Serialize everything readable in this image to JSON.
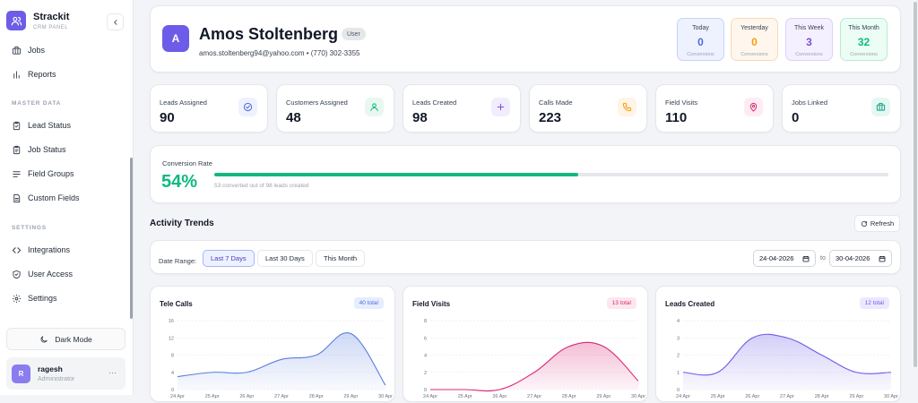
{
  "brand": {
    "name": "Strackit",
    "subtitle": "CRM PANEL"
  },
  "sidebar": {
    "items_top": [
      {
        "label": "Jobs",
        "icon": "briefcase-icon"
      },
      {
        "label": "Reports",
        "icon": "bar-chart-icon"
      }
    ],
    "master_data_heading": "MASTER DATA",
    "master_items": [
      {
        "label": "Lead Status",
        "icon": "clipboard-check-icon"
      },
      {
        "label": "Job Status",
        "icon": "clipboard-icon"
      },
      {
        "label": "Field Groups",
        "icon": "list-icon"
      },
      {
        "label": "Custom Fields",
        "icon": "document-icon"
      }
    ],
    "settings_heading": "SETTINGS",
    "settings_items": [
      {
        "label": "Integrations",
        "icon": "code-icon"
      },
      {
        "label": "User Access",
        "icon": "shield-icon"
      },
      {
        "label": "Settings",
        "icon": "gear-icon"
      }
    ],
    "dark_mode_label": "Dark Mode",
    "user": {
      "initial": "R",
      "name": "ragesh",
      "role": "Administrator"
    }
  },
  "profile": {
    "initial": "A",
    "name": "Amos Stoltenberg",
    "role_badge": "User",
    "contact": "amos.stoltenberg94@yahoo.com • (770) 302-3355",
    "conversions": [
      {
        "label": "Today",
        "value": "0",
        "sub": "Conversions",
        "bg": "#eef2ff",
        "border": "#c7d2fe",
        "color": "#4f6bd8"
      },
      {
        "label": "Yesterday",
        "value": "0",
        "sub": "Conversions",
        "bg": "#fff7ed",
        "border": "#fcd9b0",
        "color": "#f59e0b"
      },
      {
        "label": "This Week",
        "value": "3",
        "sub": "Conversions",
        "bg": "#f5f0ff",
        "border": "#ddd0fb",
        "color": "#7c4ddb"
      },
      {
        "label": "This Month",
        "value": "32",
        "sub": "Conversions",
        "bg": "#ecfdf5",
        "border": "#bbe9d2",
        "color": "#10b981"
      }
    ]
  },
  "stats": [
    {
      "label": "Leads Assigned",
      "value": "90",
      "icon": "check-circle-icon",
      "bg": "#eef2ff",
      "color": "#4f6bd8"
    },
    {
      "label": "Customers Assigned",
      "value": "48",
      "icon": "user-icon",
      "bg": "#e8f8f0",
      "color": "#10b981"
    },
    {
      "label": "Leads Created",
      "value": "98",
      "icon": "plus-icon",
      "bg": "#f1edff",
      "color": "#7c4ddb"
    },
    {
      "label": "Calls Made",
      "value": "223",
      "icon": "phone-icon",
      "bg": "#fff4e6",
      "color": "#f59e0b"
    },
    {
      "label": "Field Visits",
      "value": "110",
      "icon": "map-pin-icon",
      "bg": "#fdedf3",
      "color": "#db2777"
    },
    {
      "label": "Jobs Linked",
      "value": "0",
      "icon": "briefcase-icon",
      "bg": "#e6f7f3",
      "color": "#14a085"
    }
  ],
  "conversion_rate": {
    "label": "Conversion Rate",
    "value": "54%",
    "percent": 54,
    "sub": "53 converted out of 98 leads created",
    "color": "#10b981"
  },
  "activity": {
    "title": "Activity Trends",
    "refresh_label": "Refresh",
    "date_range_label": "Date Range:",
    "ranges": [
      {
        "label": "Last 7 Days",
        "active": true
      },
      {
        "label": "Last 30 Days",
        "active": false
      },
      {
        "label": "This Month",
        "active": false
      }
    ],
    "date_from": "24-04-2026",
    "to_label": "to",
    "date_to": "30-04-2026"
  },
  "charts": [
    {
      "title": "Tele Calls",
      "badge": "40 total",
      "badge_bg": "#e6edff",
      "badge_color": "#4f6bd8"
    },
    {
      "title": "Field Visits",
      "badge": "13 total",
      "badge_bg": "#fde7ef",
      "badge_color": "#db2777"
    },
    {
      "title": "Leads Created",
      "badge": "12 total",
      "badge_bg": "#ece8ff",
      "badge_color": "#6d5ce7"
    }
  ],
  "chart_data": [
    {
      "type": "area",
      "categories": [
        "24 Apr",
        "25 Apr",
        "26 Apr",
        "27 Apr",
        "28 Apr",
        "29 Apr",
        "30 Apr"
      ],
      "values": [
        3,
        4,
        4,
        7,
        8,
        13,
        1
      ],
      "ylim": [
        0,
        16
      ],
      "yticks": [
        "16",
        "12",
        "8",
        "4",
        "0"
      ],
      "color": "#5b7fe0",
      "grid": true
    },
    {
      "type": "area",
      "categories": [
        "24 Apr",
        "25 Apr",
        "26 Apr",
        "27 Apr",
        "28 Apr",
        "29 Apr",
        "30 Apr"
      ],
      "values": [
        0,
        0,
        0,
        2,
        5,
        5,
        1
      ],
      "ylim": [
        0,
        8
      ],
      "yticks": [
        "8",
        "6",
        "4",
        "2",
        "0"
      ],
      "color": "#db2777",
      "grid": true
    },
    {
      "type": "area",
      "categories": [
        "24 Apr",
        "25 Apr",
        "26 Apr",
        "27 Apr",
        "28 Apr",
        "29 Apr",
        "30 Apr"
      ],
      "values": [
        1,
        1,
        3,
        3,
        2,
        1,
        1
      ],
      "ylim": [
        0,
        4
      ],
      "yticks": [
        "4",
        "3",
        "2",
        "1",
        "0"
      ],
      "color": "#6d5ce7",
      "grid": true
    }
  ]
}
